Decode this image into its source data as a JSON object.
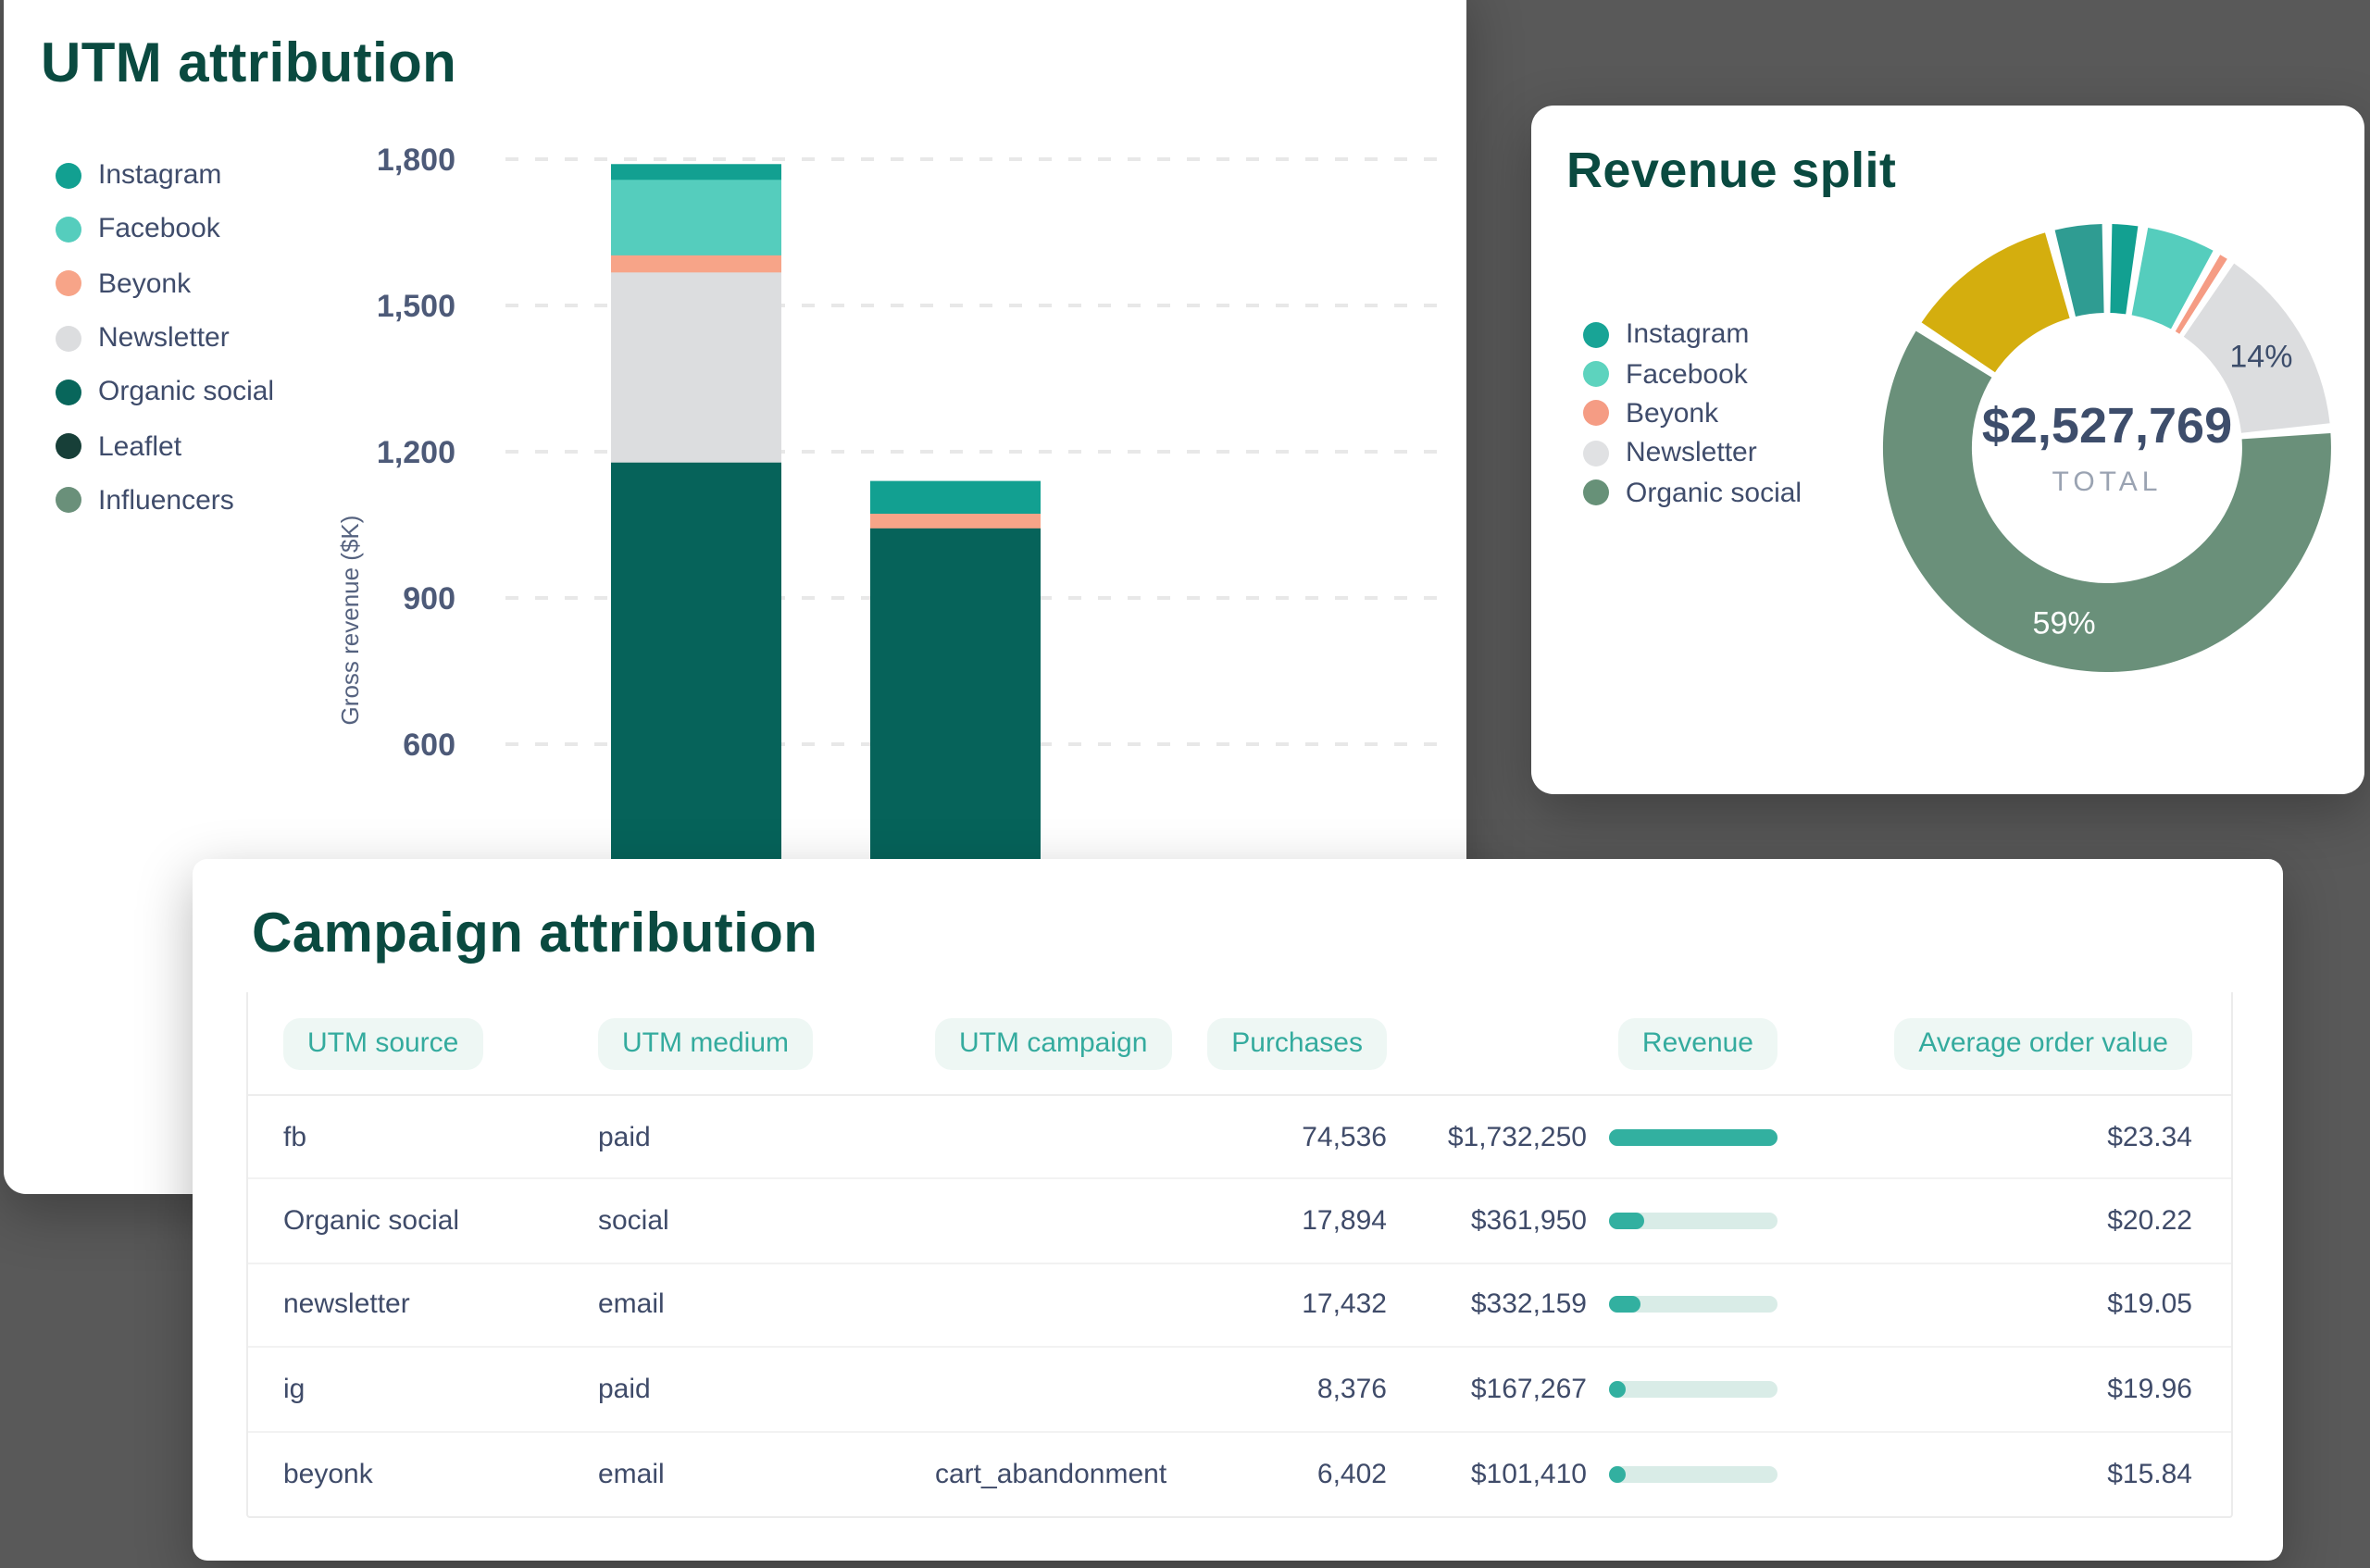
{
  "page": {
    "background_color": "#595959",
    "card_color": "#ffffff",
    "accent_teal": "#2aa79b"
  },
  "utm_card": {
    "title": "UTM attribution",
    "y_axis_title": "Gross revenue ($K)",
    "legend": [
      {
        "label": "Instagram",
        "color": "#12a091"
      },
      {
        "label": "Facebook",
        "color": "#55cdbd"
      },
      {
        "label": "Beyonk",
        "color": "#f7a488"
      },
      {
        "label": "Newsletter",
        "color": "#dcdddf"
      },
      {
        "label": "Organic social",
        "color": "#08665b"
      },
      {
        "label": "Leaflet",
        "color": "#173f38"
      },
      {
        "label": "Influencers",
        "color": "#6a907a"
      }
    ]
  },
  "revenue_card": {
    "title": "Revenue split",
    "center_value": "$2,527,769",
    "center_label": "TOTAL",
    "legend": [
      {
        "label": "Instagram",
        "color": "#18a496"
      },
      {
        "label": "Facebook",
        "color": "#5dd3be"
      },
      {
        "label": "Beyonk",
        "color": "#f59c84"
      },
      {
        "label": "Newsletter",
        "color": "#e0e1e3"
      },
      {
        "label": "Organic social",
        "color": "#679178"
      }
    ]
  },
  "campaign_card": {
    "title": "Campaign attribution",
    "table": {
      "headers": [
        "UTM source",
        "UTM medium",
        "UTM campaign",
        "Purchases",
        "Revenue",
        "Average order value"
      ],
      "rows": [
        {
          "source": "fb",
          "medium": "paid",
          "campaign": "",
          "purchases": "74,536",
          "revenue": "$1,732,250",
          "revenue_bar_pct": 100,
          "aov": "$23.34"
        },
        {
          "source": "Organic social",
          "medium": "social",
          "campaign": "",
          "purchases": "17,894",
          "revenue": "$361,950",
          "revenue_bar_pct": 21,
          "aov": "$20.22"
        },
        {
          "source": "newsletter",
          "medium": "email",
          "campaign": "",
          "purchases": "17,432",
          "revenue": "$332,159",
          "revenue_bar_pct": 19,
          "aov": "$19.05"
        },
        {
          "source": "ig",
          "medium": "paid",
          "campaign": "",
          "purchases": "8,376",
          "revenue": "$167,267",
          "revenue_bar_pct": 10,
          "aov": "$19.96"
        },
        {
          "source": "beyonk",
          "medium": "email",
          "campaign": "cart_abandonment",
          "purchases": "6,402",
          "revenue": "$101,410",
          "revenue_bar_pct": 6,
          "aov": "$15.84"
        }
      ]
    }
  },
  "chart_data": [
    {
      "id": "utm_attribution",
      "type": "bar",
      "stacked": true,
      "title": "UTM attribution",
      "xlabel": "",
      "ylabel": "Gross revenue ($K)",
      "ylim": [
        0,
        1900
      ],
      "yticks": [
        1800,
        1500,
        1200,
        900,
        600
      ],
      "ytick_labels": [
        "1,800",
        "1,500",
        "1,200",
        "900",
        "600"
      ],
      "grid": "dashed-horizontal",
      "legend_position": "left",
      "categories": [
        "",
        ""
      ],
      "categories_note": "x-axis labels hidden behind overlapping card",
      "series": [
        {
          "name": "Instagram",
          "color": "#12a091",
          "values": [
            30,
            65
          ]
        },
        {
          "name": "Facebook",
          "color": "#55cdbd",
          "values": [
            155,
            0
          ]
        },
        {
          "name": "Beyonk",
          "color": "#f7a488",
          "values": [
            35,
            30
          ]
        },
        {
          "name": "Newsletter",
          "color": "#dcdddf",
          "values": [
            390,
            0
          ]
        },
        {
          "name": "Organic social",
          "color": "#06635a",
          "values": [
            1180,
            1045
          ]
        },
        {
          "name": "Leaflet",
          "color": "#173f38",
          "values": [
            0,
            0
          ]
        },
        {
          "name": "Influencers",
          "color": "#6a907a",
          "values": [
            0,
            0
          ]
        }
      ]
    },
    {
      "id": "revenue_split",
      "type": "pie",
      "subtype": "donut",
      "title": "Revenue split",
      "center_value": "$2,527,769",
      "center_label": "TOTAL",
      "slices": [
        {
          "name": "Instagram",
          "pct": 2.5,
          "color": "#12a091"
        },
        {
          "name": "Facebook",
          "pct": 5.5,
          "color": "#55cdbd"
        },
        {
          "name": "Beyonk",
          "pct": 1,
          "color": "#f59c84"
        },
        {
          "name": "Newsletter",
          "pct": 14,
          "color": "#dcdddf",
          "label": "14%",
          "label_color": "#3d4d6b"
        },
        {
          "name": "Organic social",
          "pct": 59,
          "color": "#6a907a",
          "label": "59%",
          "label_color": "#ffffff"
        },
        {
          "name": "unlabeled-gold",
          "pct": 11.5,
          "color": "#d4ae0e"
        },
        {
          "name": "unlabeled-teal",
          "pct": 4,
          "color": "#2f9c92"
        }
      ]
    }
  ]
}
